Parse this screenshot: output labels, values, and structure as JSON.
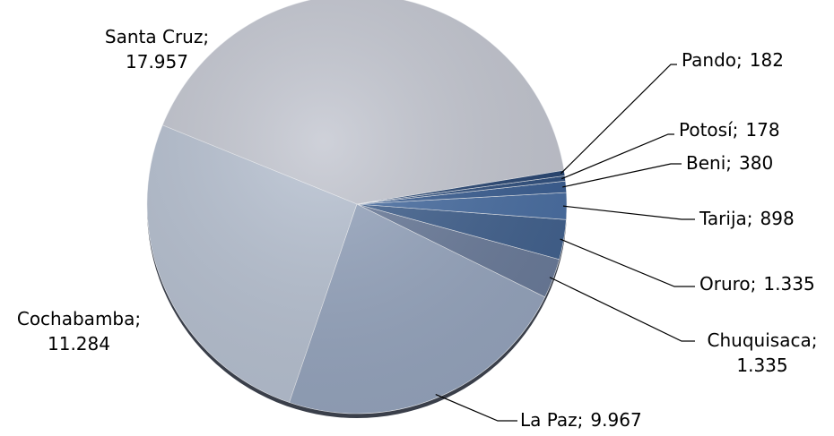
{
  "chart_data": {
    "type": "pie",
    "separator": ";",
    "categories": [
      "Santa Cruz",
      "Cochabamba",
      "La Paz",
      "Chuquisaca",
      "Oruro",
      "Tarija",
      "Beni",
      "Potosí",
      "Pando"
    ],
    "values": [
      17957,
      11284,
      9967,
      1335,
      1335,
      898,
      380,
      178,
      182
    ],
    "value_labels": [
      "17.957",
      "11.284",
      "9.967",
      "1.335",
      "1.335",
      "898",
      "380",
      "178",
      "182"
    ],
    "colors": [
      "#c4c7d1",
      "#b8c2d2",
      "#97a6bf",
      "#6b7c9b",
      "#42628f",
      "#4a6fa3",
      "#3b5f93",
      "#30507f",
      "#284673"
    ]
  }
}
